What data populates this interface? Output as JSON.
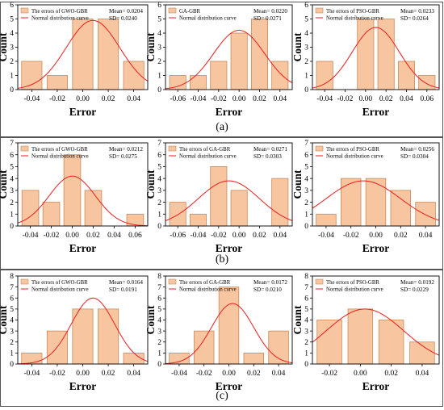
{
  "panel_labels": [
    "(a)",
    "(b)",
    "(c)"
  ],
  "style": {
    "bar_fill": "#f7c6a0",
    "bar_stroke": "#c98a5a",
    "curve": "#ee1c1c"
  },
  "chart_data": [
    {
      "type": "bar",
      "panel": "(a)",
      "ylabel": "Count",
      "xlabel": "Error",
      "legend": [
        "The errors of GWO-GBR",
        "Normal distribution curve"
      ],
      "stats": [
        "Mean= 0.0204",
        "SD= 0.0240"
      ],
      "x": [
        -0.04,
        -0.02,
        0.0,
        0.02,
        0.04
      ],
      "values": [
        2,
        1,
        5,
        5,
        2
      ],
      "xticks": [
        -0.04,
        -0.02,
        0.0,
        0.02,
        0.04
      ],
      "xlim": [
        -0.051,
        0.051
      ],
      "ylim": [
        0,
        6
      ],
      "bin_width": 0.016,
      "curve": {
        "mean": 0.008,
        "peak": 4.9,
        "sd": 0.021
      }
    },
    {
      "type": "bar",
      "panel": "(a)",
      "ylabel": "Count",
      "xlabel": "Error",
      "legend": [
        "GA-GBR",
        "Normal distribution curve"
      ],
      "stats": [
        "Mean= 0.0220",
        "SD= 0.0271"
      ],
      "x": [
        -0.06,
        -0.04,
        -0.02,
        0.0,
        0.02,
        0.04
      ],
      "values": [
        1,
        1,
        2,
        4,
        5,
        2
      ],
      "xticks": [
        -0.06,
        -0.04,
        -0.02,
        0.0,
        0.02,
        0.04
      ],
      "xlim": [
        -0.072,
        0.052
      ],
      "ylim": [
        0,
        6
      ],
      "bin_width": 0.016,
      "curve": {
        "mean": 0.0,
        "peak": 4.2,
        "sd": 0.025
      }
    },
    {
      "type": "bar",
      "panel": "(a)",
      "ylabel": "Count",
      "xlabel": "Error",
      "legend": [
        "The errors of PSO-GBR",
        "Normal distribution curve"
      ],
      "stats": [
        "Mean= 0.0233",
        "SD= 0.0264"
      ],
      "x": [
        -0.04,
        0.0,
        0.02,
        0.04,
        0.06
      ],
      "values": [
        2,
        5,
        5,
        2,
        1
      ],
      "xticks": [
        -0.04,
        -0.02,
        0.0,
        0.02,
        0.04,
        0.06
      ],
      "xlim": [
        -0.052,
        0.072
      ],
      "ylim": [
        0,
        6
      ],
      "bin_width": 0.016,
      "curve": {
        "mean": 0.01,
        "peak": 4.4,
        "sd": 0.023
      }
    },
    {
      "type": "bar",
      "panel": "(b)",
      "ylabel": "Count",
      "xlabel": "Error",
      "legend": [
        "The errors of GWO-GBR",
        "Normal distribution curve"
      ],
      "stats": [
        "Mean= 0.0212",
        "SD= 0.0275"
      ],
      "x": [
        -0.04,
        -0.02,
        0.0,
        0.02,
        0.06
      ],
      "values": [
        3,
        2,
        6,
        3,
        1
      ],
      "xticks": [
        -0.04,
        -0.02,
        0.0,
        0.02,
        0.04,
        0.06
      ],
      "xlim": [
        -0.052,
        0.072
      ],
      "ylim": [
        0,
        7
      ],
      "bin_width": 0.016,
      "curve": {
        "mean": 0.0,
        "peak": 4.2,
        "sd": 0.022
      }
    },
    {
      "type": "bar",
      "panel": "(b)",
      "ylabel": "Count",
      "xlabel": "Error",
      "legend": [
        "The errors of GA-GBR",
        "Normal distribution curve"
      ],
      "stats": [
        "Mean= 0.0271",
        "SD= 0.0303"
      ],
      "x": [
        -0.06,
        -0.04,
        -0.02,
        0.0,
        0.04
      ],
      "values": [
        2,
        1,
        5,
        3,
        4
      ],
      "xticks": [
        -0.06,
        -0.04,
        -0.02,
        0.0,
        0.02,
        0.04
      ],
      "xlim": [
        -0.072,
        0.052
      ],
      "ylim": [
        0,
        7
      ],
      "bin_width": 0.016,
      "curve": {
        "mean": -0.01,
        "peak": 3.8,
        "sd": 0.03
      }
    },
    {
      "type": "bar",
      "panel": "(b)",
      "ylabel": "Count",
      "xlabel": "Error",
      "legend": [
        "The errors of PSO-GBR",
        "Normal distribution curve"
      ],
      "stats": [
        "Mean= 0.0256",
        "SD= 0.0304"
      ],
      "x": [
        -0.04,
        -0.02,
        0.0,
        0.02,
        0.04
      ],
      "values": [
        1,
        4,
        4,
        3,
        2
      ],
      "xticks": [
        -0.04,
        -0.02,
        0.0,
        0.02,
        0.04
      ],
      "xlim": [
        -0.051,
        0.051
      ],
      "ylim": [
        0,
        7
      ],
      "bin_width": 0.016,
      "curve": {
        "mean": -0.01,
        "peak": 3.8,
        "sd": 0.03
      }
    },
    {
      "type": "bar",
      "panel": "(c)",
      "ylabel": "Count",
      "xlabel": "Error",
      "legend": [
        "The errors of GWO-GBR",
        "Normal distribution curve"
      ],
      "stats": [
        "Mean= 0.0164",
        "SD= 0.0191"
      ],
      "x": [
        -0.04,
        -0.02,
        0.0,
        0.02,
        0.04
      ],
      "values": [
        1,
        3,
        5,
        5,
        1
      ],
      "xticks": [
        -0.04,
        -0.02,
        0.0,
        0.02,
        0.04
      ],
      "xlim": [
        -0.051,
        0.051
      ],
      "ylim": [
        0,
        8
      ],
      "bin_width": 0.016,
      "curve": {
        "mean": 0.008,
        "peak": 6.0,
        "sd": 0.017
      }
    },
    {
      "type": "bar",
      "panel": "(c)",
      "ylabel": "Count",
      "xlabel": "Error",
      "legend": [
        "The errors of GA-GBR",
        "Normal distribution curve"
      ],
      "stats": [
        "Mean= 0.0172",
        "SD= 0.0210"
      ],
      "x": [
        -0.04,
        -0.02,
        0.0,
        0.02,
        0.04
      ],
      "values": [
        1,
        3,
        7,
        1,
        3
      ],
      "xticks": [
        -0.04,
        -0.02,
        0.0,
        0.02,
        0.04
      ],
      "xlim": [
        -0.051,
        0.051
      ],
      "ylim": [
        0,
        8
      ],
      "bin_width": 0.016,
      "curve": {
        "mean": 0.003,
        "peak": 5.5,
        "sd": 0.017
      }
    },
    {
      "type": "bar",
      "panel": "(c)",
      "ylabel": "Count",
      "xlabel": "Error",
      "legend": [
        "The errors of PSO-GBR",
        "Normal distribution curve"
      ],
      "stats": [
        "Mean= 0.0192",
        "SD= 0.0229"
      ],
      "x": [
        -0.02,
        0.0,
        0.02,
        0.04
      ],
      "values": [
        4,
        5,
        4,
        2
      ],
      "xticks": [
        -0.02,
        0.0,
        0.02,
        0.04
      ],
      "xlim": [
        -0.031,
        0.051
      ],
      "ylim": [
        0,
        8
      ],
      "bin_width": 0.016,
      "curve": {
        "mean": 0.003,
        "peak": 5.0,
        "sd": 0.025
      }
    }
  ]
}
